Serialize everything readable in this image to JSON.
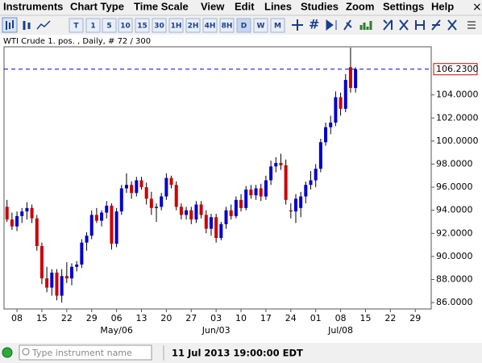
{
  "menu": [
    "Instruments",
    "Chart Type",
    "Time Scale",
    "View",
    "Edit",
    "Lines",
    "Studies",
    "Zoom",
    "Settings",
    "Help"
  ],
  "toolbar": {
    "timeframes": [
      "T",
      "1",
      "5",
      "10",
      "15",
      "30",
      "1H",
      "2H",
      "4H",
      "8H",
      "D",
      "W",
      "M"
    ]
  },
  "chart_data": {
    "type": "candlestick",
    "title": "WTI Crude 1. pos. , Daily, # 72 / 300",
    "up_color": "#0000cc",
    "down_color": "#cc0000",
    "open": [
      94.3,
      93.2,
      92.6,
      93.5,
      93.9,
      94.2,
      93.3,
      90.9,
      88.1,
      87.3,
      88.6,
      86.6,
      88.3,
      88.1,
      89.1,
      89.3,
      91.2,
      91.8,
      93.6,
      93.1,
      93.8,
      94.4,
      91.1,
      93.9,
      95.9,
      96.2,
      95.5,
      96.6,
      96.0,
      95.0,
      94.2,
      94.3,
      95.2,
      96.8,
      96.2,
      94.3,
      93.6,
      94.0,
      93.2,
      94.5,
      93.6,
      92.4,
      93.4,
      91.6,
      92.8,
      94.0,
      93.5,
      94.9,
      94.2,
      95.8,
      95.3,
      95.9,
      95.2,
      96.6,
      97.8,
      98.1,
      97.9,
      94.0,
      93.9,
      94.2,
      95.2,
      96.2,
      96.6,
      97.6,
      99.9,
      101.2,
      101.6,
      103.8,
      102.8,
      106.4,
      104.6
    ],
    "high": [
      94.9,
      93.8,
      93.9,
      94.2,
      94.7,
      94.5,
      93.6,
      91.2,
      89.1,
      88.9,
      88.9,
      88.9,
      89.5,
      89.4,
      89.6,
      91.5,
      92.1,
      94.0,
      94.2,
      94.0,
      94.8,
      94.6,
      94.2,
      96.2,
      97.2,
      96.5,
      96.9,
      96.9,
      96.4,
      95.6,
      94.6,
      95.5,
      97.2,
      97.0,
      96.5,
      94.6,
      94.3,
      94.3,
      94.8,
      94.8,
      94.0,
      93.7,
      93.7,
      93.0,
      94.3,
      94.5,
      95.2,
      95.4,
      96.1,
      96.2,
      96.2,
      96.3,
      97.0,
      98.3,
      98.6,
      98.9,
      98.4,
      94.6,
      95.4,
      95.6,
      96.5,
      97.4,
      98.0,
      100.2,
      101.6,
      102.2,
      104.3,
      104.2,
      105.8,
      108.1,
      106.4
    ],
    "low": [
      93.0,
      92.3,
      92.2,
      92.9,
      93.2,
      92.9,
      90.5,
      87.6,
      86.9,
      86.6,
      86.2,
      86.0,
      87.7,
      87.5,
      88.7,
      89.0,
      90.5,
      91.5,
      92.9,
      92.6,
      93.3,
      90.6,
      90.8,
      93.6,
      95.5,
      95.0,
      95.2,
      95.8,
      94.5,
      93.6,
      93.0,
      94.0,
      94.9,
      95.9,
      94.0,
      93.2,
      93.2,
      92.8,
      92.9,
      93.3,
      92.0,
      91.8,
      91.2,
      91.4,
      92.4,
      93.2,
      93.3,
      93.9,
      94.0,
      95.0,
      94.9,
      94.8,
      94.9,
      96.2,
      97.3,
      97.5,
      94.5,
      93.3,
      92.9,
      93.4,
      94.6,
      95.8,
      96.0,
      97.3,
      99.6,
      100.6,
      101.3,
      102.2,
      102.5,
      104.2,
      104.2
    ],
    "close": [
      93.2,
      92.6,
      93.5,
      93.9,
      94.2,
      93.3,
      90.9,
      88.1,
      87.3,
      88.6,
      86.6,
      88.3,
      88.1,
      89.1,
      89.3,
      91.2,
      91.8,
      93.6,
      93.1,
      93.8,
      94.4,
      91.1,
      93.9,
      95.9,
      96.2,
      95.5,
      96.6,
      96.0,
      95.0,
      94.2,
      94.3,
      95.2,
      96.8,
      96.2,
      94.3,
      93.6,
      94.0,
      93.2,
      94.5,
      93.6,
      92.4,
      93.4,
      91.6,
      92.8,
      94.0,
      93.5,
      94.9,
      94.2,
      95.8,
      95.3,
      95.9,
      95.2,
      96.6,
      97.8,
      98.1,
      97.9,
      94.9,
      93.9,
      95.0,
      95.2,
      96.2,
      96.6,
      97.6,
      99.9,
      101.2,
      101.6,
      103.8,
      102.8,
      105.3,
      104.6,
      106.23
    ],
    "last_price": 106.23,
    "last_price_label": "106.2300",
    "xlim": [
      -0.6,
      85.2
    ],
    "ylim": [
      85.45,
      108.17
    ],
    "xticks": [
      {
        "value": 2,
        "label": "08"
      },
      {
        "value": 7,
        "label": "15"
      },
      {
        "value": 12,
        "label": "22"
      },
      {
        "value": 17,
        "label": "29"
      },
      {
        "value": 22,
        "label": "06"
      },
      {
        "value": 27,
        "label": "13"
      },
      {
        "value": 32,
        "label": "20"
      },
      {
        "value": 37,
        "label": "27"
      },
      {
        "value": 42,
        "label": "03"
      },
      {
        "value": 47,
        "label": "10"
      },
      {
        "value": 52,
        "label": "17"
      },
      {
        "value": 57,
        "label": "24"
      },
      {
        "value": 62,
        "label": "01"
      },
      {
        "value": 67,
        "label": "08"
      },
      {
        "value": 72,
        "label": "15"
      },
      {
        "value": 77,
        "label": "22"
      },
      {
        "value": 82,
        "label": "29"
      }
    ],
    "month_ticks": [
      {
        "value": 22,
        "label": "May/06"
      },
      {
        "value": 42,
        "label": "Jun/03"
      },
      {
        "value": 67,
        "label": "Jul/08"
      }
    ],
    "yticks": [
      {
        "value": 86,
        "label": "86.0000"
      },
      {
        "value": 88,
        "label": "88.0000"
      },
      {
        "value": 90,
        "label": "90.0000"
      },
      {
        "value": 92,
        "label": "92.0000"
      },
      {
        "value": 94,
        "label": "94.0000"
      },
      {
        "value": 96,
        "label": "96.0000"
      },
      {
        "value": 98,
        "label": "98.0000"
      },
      {
        "value": 100,
        "label": "100.0000"
      },
      {
        "value": 102,
        "label": "102.0000"
      },
      {
        "value": 104,
        "label": "104.0000"
      }
    ]
  },
  "status": {
    "search_placeholder": "Type instrument name",
    "datetime": "11 Jul 2013 19:00:00 EDT"
  }
}
